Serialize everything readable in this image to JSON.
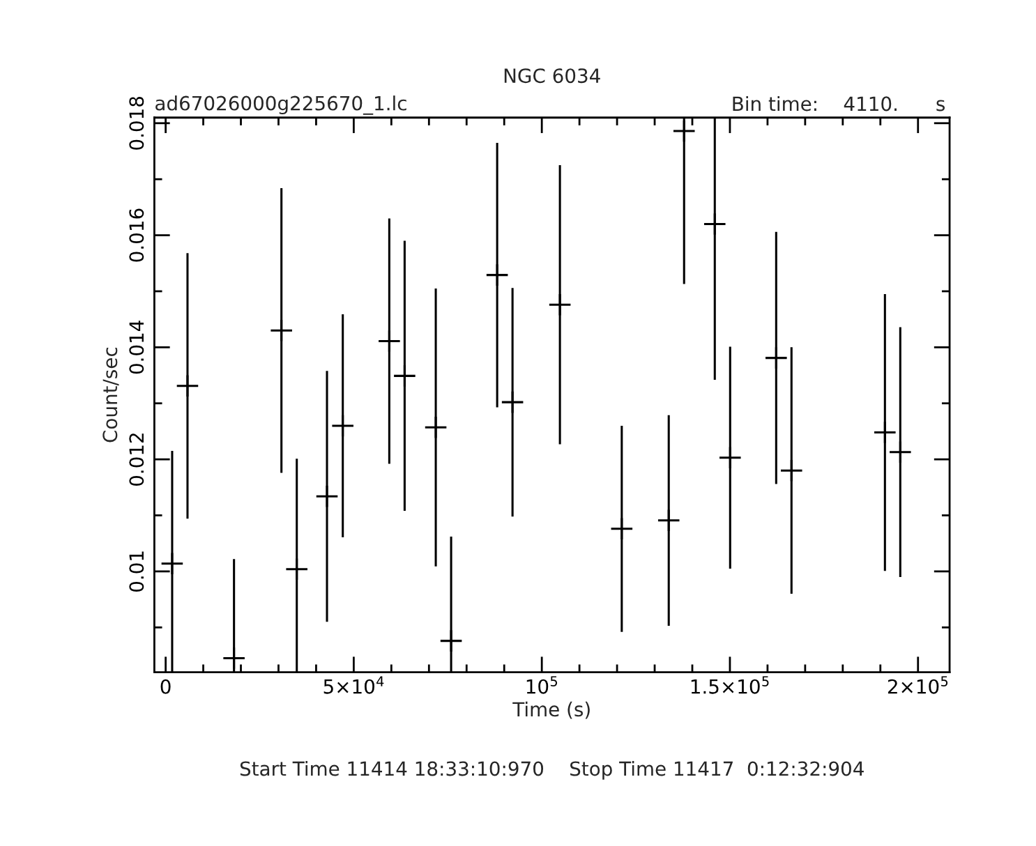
{
  "chart_data": {
    "type": "scatter",
    "title": "NGC 6034",
    "xlabel": "Time (s)",
    "ylabel": "Count/sec",
    "annotations": [
      "ad67026000g225670_1.lc",
      "Bin time:    4110.      s",
      "Start Time 11414 18:33:10:970    Stop Time 11417  0:12:32:904"
    ],
    "series": [
      {
        "color": "#000000",
        "x": [
          1730,
          5810,
          18170,
          30780,
          34860,
          42890,
          47090,
          59450,
          63530,
          71810,
          75890,
          88130,
          92210,
          104810,
          121250,
          133740,
          137820,
          145980,
          150060,
          162300,
          166370,
          191210,
          195290
        ],
        "values": [
          0.01014,
          0.01331,
          0.00845,
          0.0143,
          0.01004,
          0.01134,
          0.0126,
          0.01411,
          0.01349,
          0.01257,
          0.00876,
          0.01529,
          0.01302,
          0.01476,
          0.01076,
          0.01091,
          0.01786,
          0.0162,
          0.01203,
          0.01381,
          0.0118,
          0.01248,
          0.01213
        ],
        "errors": [
          [
            0.0082,
            0.01215
          ],
          0.00237,
          [
            0.0082,
            0.01022
          ],
          0.00254,
          [
            0.0082,
            0.01201
          ],
          0.00224,
          0.00199,
          0.00219,
          0.00241,
          0.00248,
          [
            0.0082,
            0.01062
          ],
          0.00236,
          0.00204,
          0.00249,
          0.00184,
          0.00188,
          [
            0.01513,
            0.0181
          ],
          [
            0.01342,
            0.0181
          ],
          0.00198,
          0.00225,
          0.0022,
          0.00247,
          0.00223
        ]
      }
    ],
    "xlim": [
      -3000,
      208400
    ],
    "ylim": [
      0.0082,
      0.0181
    ],
    "xticks": [
      0,
      {
        "value": 10000,
        "label": null
      },
      {
        "value": 20000,
        "label": null
      },
      {
        "value": 30000,
        "label": null
      },
      {
        "value": 40000,
        "label": null
      },
      {
        "value": 50000,
        "label": "5×10$^{4}$"
      },
      {
        "value": 60000,
        "label": null
      },
      {
        "value": 70000,
        "label": null
      },
      {
        "value": 80000,
        "label": null
      },
      {
        "value": 90000,
        "label": null
      },
      {
        "value": 100000,
        "label": "10$^{5}$"
      },
      {
        "value": 110000,
        "label": null
      },
      {
        "value": 120000,
        "label": null
      },
      {
        "value": 130000,
        "label": null
      },
      {
        "value": 140000,
        "label": null
      },
      {
        "value": 150000,
        "label": "1.5×10$^{5}$"
      },
      {
        "value": 160000,
        "label": null
      },
      {
        "value": 170000,
        "label": null
      },
      {
        "value": 180000,
        "label": null
      },
      {
        "value": 190000,
        "label": null
      },
      {
        "value": 200000,
        "label": "2×10$^{5}$"
      }
    ],
    "yticks": [
      {
        "value": 0.009,
        "label": null
      },
      0.01,
      {
        "value": 0.011,
        "label": null
      },
      0.012,
      {
        "value": 0.013,
        "label": null
      },
      0.014,
      {
        "value": 0.015,
        "label": null
      },
      0.016,
      {
        "value": 0.017,
        "label": null
      },
      0.018
    ],
    "marker": "cross",
    "grid": false,
    "legend": false
  }
}
